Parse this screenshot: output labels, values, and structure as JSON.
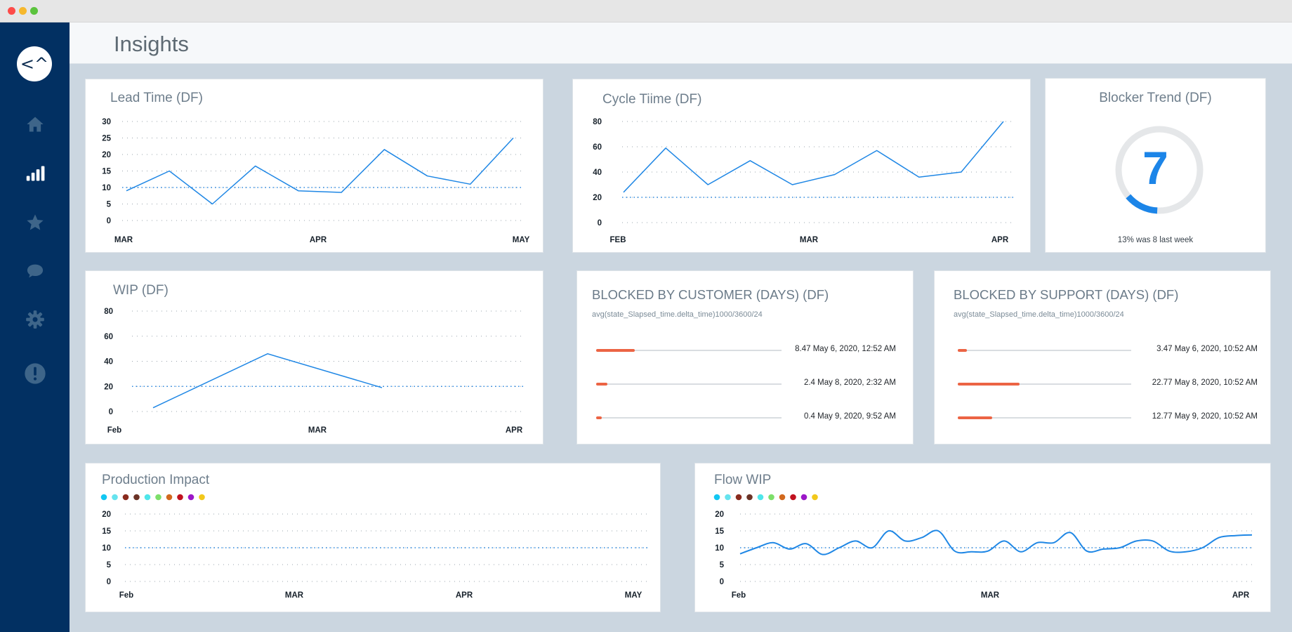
{
  "app": {
    "title": "Insights",
    "logo_text": "<^"
  },
  "window": {
    "controls": [
      "close",
      "minimize",
      "zoom"
    ]
  },
  "sidebar": {
    "items": [
      {
        "name": "home",
        "icon": "home-icon"
      },
      {
        "name": "insights",
        "icon": "bar-chart-icon",
        "active": true
      },
      {
        "name": "favorites",
        "icon": "star-icon"
      },
      {
        "name": "messages",
        "icon": "chat-bubble-icon"
      },
      {
        "name": "settings",
        "icon": "gear-icon"
      },
      {
        "name": "alerts",
        "icon": "alert-icon"
      }
    ]
  },
  "colors": {
    "line": "#1f87e5",
    "bar": "#ec6444",
    "sidebar": "#023062",
    "accent": "#1c85e8"
  },
  "cards": {
    "lead_time": {
      "title": "Lead Time (DF)",
      "chart_data": {
        "type": "line",
        "y_ticks": [
          "30",
          "25",
          "20",
          "15",
          "10",
          "5",
          "0"
        ],
        "ylim": [
          0,
          30
        ],
        "x_ticks": [
          "MAR",
          "APR",
          "MAY"
        ],
        "reference_line": 10,
        "series": [
          {
            "values": [
              9,
              15,
              5,
              16.5,
              9,
              8.5,
              21.5,
              13.5,
              11,
              25
            ]
          }
        ]
      }
    },
    "cycle_time": {
      "title": "Cycle Tiime (DF)",
      "chart_data": {
        "type": "line",
        "y_ticks": [
          "80",
          "60",
          "40",
          "20",
          "0"
        ],
        "ylim": [
          0,
          80
        ],
        "x_ticks": [
          "FEB",
          "MAR",
          "APR"
        ],
        "reference_line": 20,
        "series": [
          {
            "values": [
              24,
              59,
              30,
              49,
              30,
              38,
              57,
              36,
              40,
              80
            ]
          }
        ]
      }
    },
    "blocker_trend": {
      "title": "Blocker Trend (DF)",
      "value": "7",
      "progress": 0.13,
      "caption": "13% was 8 last week"
    },
    "wip": {
      "title": "WIP (DF)",
      "chart_data": {
        "type": "line",
        "y_ticks": [
          "80",
          "60",
          "40",
          "20",
          "0"
        ],
        "ylim": [
          0,
          80
        ],
        "x_ticks": [
          "Feb",
          "MAR",
          "APR"
        ],
        "reference_line": 20,
        "series": [
          {
            "values": [
              3,
              46,
              19
            ]
          }
        ]
      }
    },
    "blocked_customer": {
      "title": "BLOCKED BY CUSTOMER (DAYS) (DF)",
      "subtitle": "avg(state_Slapsed_time.delta_time)1000/3600/24",
      "chart_data": {
        "type": "bar",
        "rows": [
          {
            "value": 8.47,
            "label": "8.47 May 6, 2020, 12:52 AM"
          },
          {
            "value": 2.4,
            "label": "2.4 May 8, 2020, 2:32 AM"
          },
          {
            "value": 0.4,
            "label": "0.4 May 9, 2020, 9:52 AM"
          }
        ]
      }
    },
    "blocked_support": {
      "title": "BLOCKED BY SUPPORT (DAYS) (DF)",
      "subtitle": "avg(state_Slapsed_time.delta_time)1000/3600/24",
      "chart_data": {
        "type": "bar",
        "rows": [
          {
            "value": 3.47,
            "label": "3.47 May 6, 2020, 10:52 AM"
          },
          {
            "value": 22.77,
            "label": "22.77 May 8, 2020, 10:52 AM"
          },
          {
            "value": 12.77,
            "label": "12.77 May 9, 2020, 10:52 AM"
          }
        ]
      }
    },
    "production_impact": {
      "title": "Production Impact",
      "legend_colors": [
        "#12c7f2",
        "#66e3ee",
        "#8a2b1e",
        "#6b3326",
        "#4fe6ea",
        "#7ddf6a",
        "#d2691e",
        "#c1121f",
        "#9b18c8",
        "#f2c81b"
      ],
      "chart_data": {
        "type": "line",
        "y_ticks": [
          "20",
          "15",
          "10",
          "5",
          "0"
        ],
        "ylim": [
          0,
          20
        ],
        "x_ticks": [
          "Feb",
          "MAR",
          "APR",
          "MAY"
        ],
        "reference_line": 10,
        "series": []
      }
    },
    "flow_wip": {
      "title": "Flow WIP",
      "legend_colors": [
        "#12c7f2",
        "#66e3ee",
        "#8a2b1e",
        "#6b3326",
        "#4fe6ea",
        "#7ddf6a",
        "#d2691e",
        "#c1121f",
        "#9b18c8",
        "#f2c81b"
      ],
      "chart_data": {
        "type": "line",
        "y_ticks": [
          "20",
          "15",
          "10",
          "5",
          "0"
        ],
        "ylim": [
          0,
          20
        ],
        "x_ticks": [
          "Feb",
          "MAR",
          "APR"
        ],
        "reference_line": 10,
        "series": [
          {
            "values": [
              8.2,
              10,
              11.5,
              9.6,
              11.2,
              8,
              10,
              12,
              10,
              15,
              12,
              13,
              15,
              9,
              8.8,
              9,
              12,
              8.8,
              11.5,
              11.5,
              14.5,
              9,
              9.6,
              10,
              12,
              12,
              9,
              8.8,
              10,
              13,
              13.6,
              13.8
            ]
          }
        ]
      }
    }
  }
}
